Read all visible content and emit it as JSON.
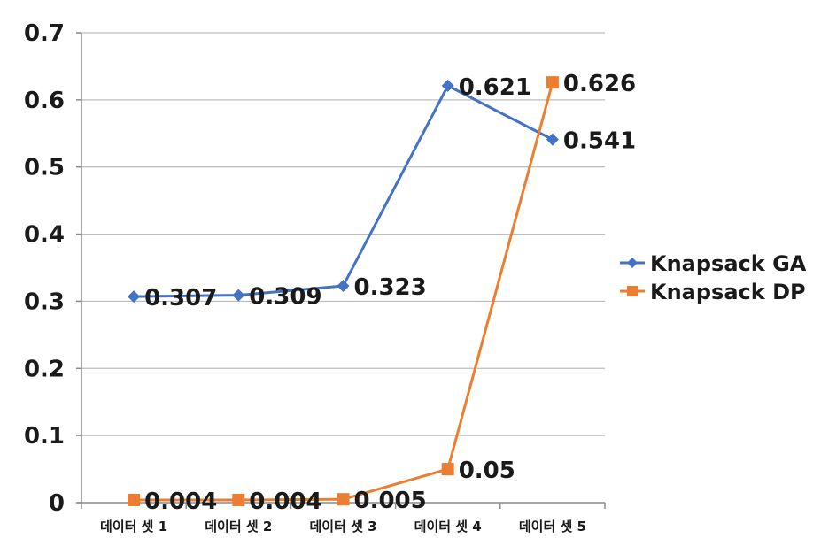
{
  "chart_data": {
    "type": "line",
    "categories": [
      "데이터 셋 1",
      "데이터 셋 2",
      "데이터 셋 3",
      "데이터 셋 4",
      "데이터 셋 5"
    ],
    "series": [
      {
        "name": "Knapsack GA",
        "values": [
          0.307,
          0.309,
          0.323,
          0.621,
          0.541
        ],
        "labels": [
          "0.307",
          "0.309",
          "0.323",
          "0.621",
          "0.541"
        ],
        "color": "#4472C4",
        "marker": "diamond"
      },
      {
        "name": "Knapsack DP",
        "values": [
          0.004,
          0.004,
          0.005,
          0.05,
          0.626
        ],
        "labels": [
          "0.004",
          "0.004",
          "0.005",
          "0.05",
          "0.626"
        ],
        "color": "#ED7D31",
        "marker": "square"
      }
    ],
    "yticks": [
      "0",
      "0.1",
      "0.2",
      "0.3",
      "0.4",
      "0.5",
      "0.6",
      "0.7"
    ],
    "ylim": [
      0,
      0.7
    ],
    "grid": true,
    "legend_position": "right"
  }
}
